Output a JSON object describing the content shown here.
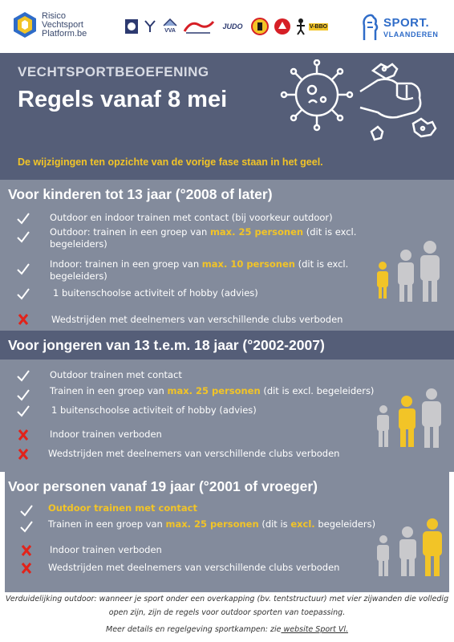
{
  "logos": {
    "rvp_line1": "Risico",
    "rvp_line2": "Vechtsport",
    "rvp_line3": "Platform.be",
    "federations": [
      "",
      "",
      "VVA",
      "",
      "JUDO",
      "",
      "",
      "",
      "V-BBO"
    ],
    "sport_vl_line1": "SPORT.",
    "sport_vl_line2": "VLAANDEREN"
  },
  "header": {
    "kicker": "VECHTSPORTBEOEFENING",
    "title": "Regels vanaf 8 mei",
    "note": "De  wijzigingen ten opzichte van de vorige fase staan in het geel."
  },
  "sections": [
    {
      "title": "Voor kinderen tot 13 jaar (°2008 of later)",
      "rows": [
        {
          "mark": "check",
          "text": "Outdoor en indoor trainen met contact (bij voorkeur outdoor)"
        },
        {
          "mark": "check",
          "pre": "Outdoor: trainen in een groep van ",
          "hl": "max. 25 personen",
          "post": " (dit is excl. begeleiders)"
        },
        {
          "mark": "check",
          "pre": "Indoor: trainen in een groep van ",
          "hl": "max. 10 personen",
          "post": "  (dit is excl. begeleiders)"
        },
        {
          "mark": "check",
          "text": "1 buitenschoolse activiteit of hobby (advies)"
        },
        {
          "mark": "cross",
          "text": "Wedstrijden met deelnemers van verschillende clubs verboden"
        }
      ]
    },
    {
      "title": "Voor jongeren van 13 t.e.m. 18 jaar (°2002-2007)",
      "rows": [
        {
          "mark": "check",
          "text": "Outdoor trainen met contact"
        },
        {
          "mark": "check",
          "pre": "Trainen in een groep van ",
          "hl": "max. 25 personen",
          "post": "  (dit is excl. begeleiders)"
        },
        {
          "mark": "check",
          "text": "1 buitenschoolse activiteit of hobby (advies)"
        },
        {
          "mark": "cross",
          "text": "Indoor trainen verboden"
        },
        {
          "mark": "cross",
          "text": "Wedstrijden met deelnemers van verschillende clubs verboden"
        }
      ]
    },
    {
      "title": "Voor personen vanaf 19 jaar (°2001 of vroeger)",
      "rows": [
        {
          "mark": "check",
          "hl_full": "Outdoor trainen met contact"
        },
        {
          "mark": "check",
          "pre": "Trainen in een groep van ",
          "hl": "max. 25 personen",
          "mid": " (dit is ",
          "hl2": "excl.",
          "post": " begeleiders)"
        },
        {
          "mark": "cross",
          "text": "Indoor trainen verboden"
        },
        {
          "mark": "cross",
          "text": "Wedstrijden met deelnemers van verschillende clubs verboden"
        }
      ]
    }
  ],
  "footer": {
    "line1": "Verduidelijking outdoor: wanneer je sport onder een overkapping (bv. tentstructuur) met vier zijwanden die volledig open zijn, zijn de regels voor outdoor sporten van toepassing.",
    "line2_pre": "Meer details en regelgeving sportkampen: zie",
    "line2_link": " website Sport Vl."
  },
  "colors": {
    "header_bg": "#555e78",
    "section_bg": "#838b9c",
    "highlight": "#f2c427",
    "cross": "#e2231a",
    "person_grey": "#c9c9cc",
    "person_yellow": "#f2c427"
  }
}
